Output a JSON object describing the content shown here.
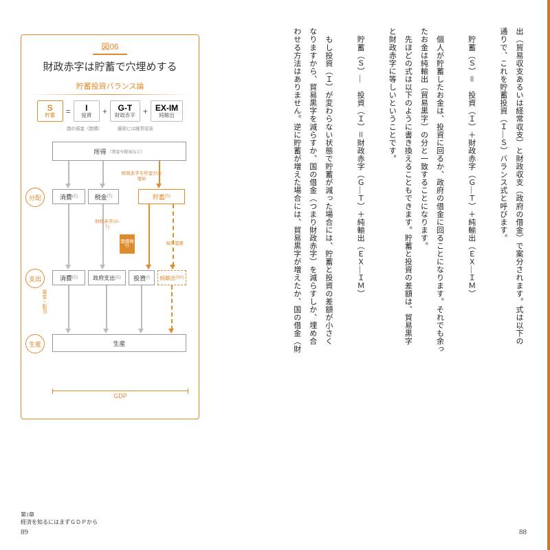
{
  "rightPage": {
    "lines": [
      "出（貿易収支あるいは経常収支）と財政収支（政府の借金）で案分されます。式は以下の",
      "通りで、これを貯蓄投資（Ｉ―Ｓ）バランス式と呼びます。",
      "　",
      "　貯蓄（Ｓ）＝　投資（Ｉ）＋財政赤字（Ｇ―Ｔ）＋純輸出（ＥＸ―ＩＭ）",
      "　",
      "　個人が貯蓄したお金は、投資に回るか、政府の借金に回ることになります。それでも余っ",
      "たお金は純輸出（貿易黒字）の分と一致することになります。",
      "　先ほどの式は以下のように書き換えることもできます。貯蓄と投資の差額は、貿易黒字",
      "と財政赤字に等しいということです。",
      "　",
      "　貯蓄（Ｓ）―　投資（Ｉ）＝財政赤字（Ｇ―Ｔ）＋純輸出（ＥＸ―ＩＭ）",
      "　",
      "　もし投資（Ｉ）が変わらない状態で貯蓄が減った場合には、貯蓄と投資の差額が小さく",
      "なりますから、貿易黒字を減らすか、国の借金（つまり財政赤字）を減らすしか、埋め合",
      "わせる方法はありません。逆に貯蓄が増えた場合には、貿易黒字が増えたか、国の借金（財"
    ],
    "pagenum": "88"
  },
  "leftPage": {
    "chapter": "第1章",
    "chapterTitle": "経済を知るにはまずＧＤＰから",
    "pagenum": "89",
    "fig": {
      "tag": "図06",
      "title": "財政赤字は貯蓄で穴埋めする",
      "subtitle": "貯蓄投資バランス論",
      "eq": {
        "s": {
          "top": "S",
          "bot": "貯蓄"
        },
        "i": {
          "top": "I",
          "bot": "投資"
        },
        "gt": {
          "top": "G-T",
          "bot": "財政赤字"
        },
        "ex": {
          "top": "EX-IM",
          "bot": "純輸出"
        },
        "note1": "国の借金（国債）",
        "note2": "厳密には経常収支"
      },
      "rows": {
        "r1": "分配",
        "r2": "支出",
        "r3": "生産"
      },
      "boxes": {
        "income": "所得",
        "income_note": "（賃金や配当など）",
        "cons": "消費",
        "cons_s": "(C)",
        "tax": "税金",
        "tax_s": "(T)",
        "sav": "貯蓄",
        "sav_s": "(S)",
        "cons2": "消費",
        "cons2_s": "(C)",
        "gov": "政府支出",
        "gov_s": "(G)",
        "inv": "投資",
        "inv_s": "(I)",
        "nx": "純輸出",
        "nx_s": "(NX)",
        "prod": "生産",
        "gdp": "GDP",
        "annot1": "財政赤字を貯金が穴埋め",
        "annot2": "財政赤字(G-T)",
        "annot3": "国債発行",
        "annot4": "海外需要",
        "side": "賃金・配当"
      }
    }
  },
  "colors": {
    "accent": "#e08a2e",
    "text": "#222",
    "gray": "#888"
  }
}
